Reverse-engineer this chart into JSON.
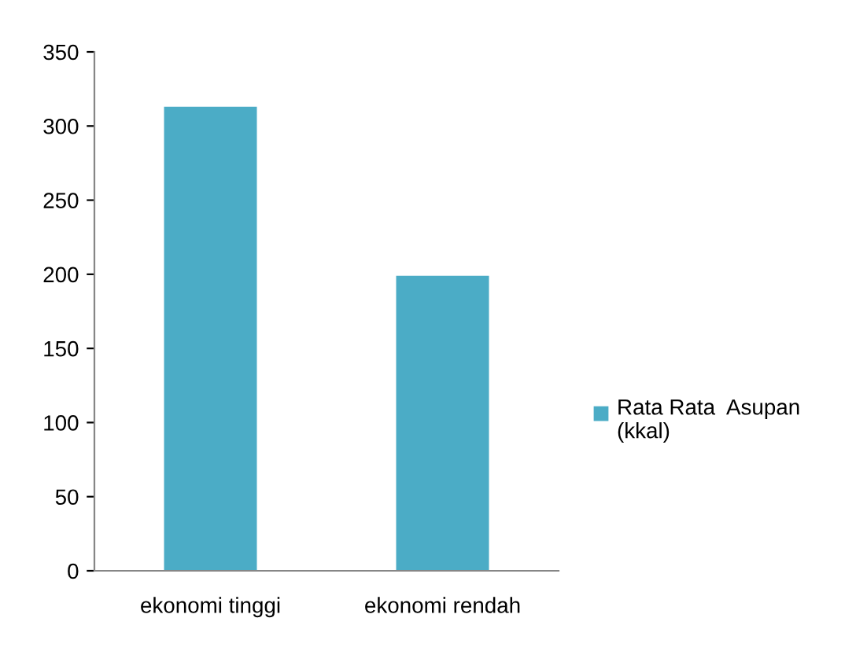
{
  "chart_data": {
    "type": "bar",
    "categories": [
      "ekonomi tinggi",
      "ekonomi rendah"
    ],
    "series": [
      {
        "name": "Rata Rata  Asupan (kkal)",
        "color": "#4bacc6",
        "values": [
          313,
          199
        ]
      }
    ],
    "ylim": [
      0,
      350
    ],
    "yticks": [
      0,
      50,
      100,
      150,
      200,
      250,
      300,
      350
    ],
    "grid": false,
    "legend": "right"
  }
}
